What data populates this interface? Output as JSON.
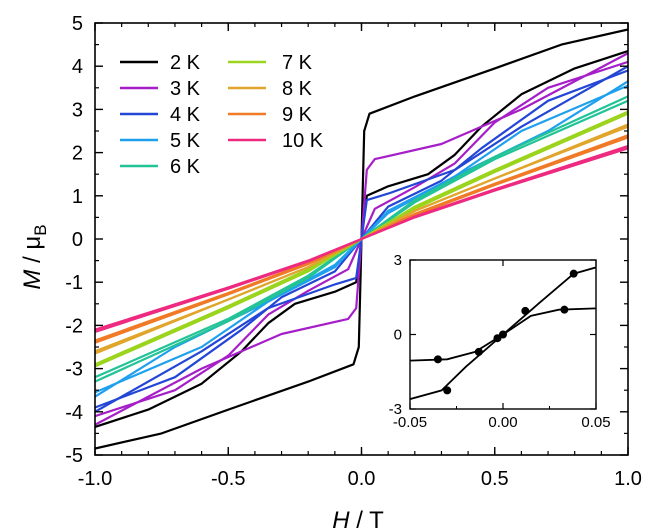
{
  "chart_data": [
    {
      "type": "line",
      "title": "",
      "xlabel": {
        "italic": "H",
        "rest": " / T"
      },
      "ylabel": {
        "italic": "M",
        "rest": " / μ",
        "sub": "B"
      },
      "xlim": [
        -1.0,
        1.0
      ],
      "ylim": [
        -5,
        5
      ],
      "xticks": [
        -1.0,
        -0.5,
        0.0,
        0.5,
        1.0
      ],
      "xtick_labels": [
        "-1.0",
        "-0.5",
        "0.0",
        "0.5",
        "1.0"
      ],
      "yticks": [
        -5,
        -4,
        -3,
        -2,
        -1,
        0,
        1,
        2,
        3,
        4,
        5
      ],
      "ytick_labels": [
        "-5",
        "-4",
        "-3",
        "-2",
        "-1",
        "0",
        "1",
        "2",
        "3",
        "4",
        "5"
      ],
      "legend_position": "top-left",
      "series": [
        {
          "name": "2 K",
          "color": "#000000",
          "upper": [
            [
              -1.0,
              -4.35
            ],
            [
              -0.8,
              -3.95
            ],
            [
              -0.6,
              -3.35
            ],
            [
              -0.45,
              -2.6
            ],
            [
              -0.35,
              -1.95
            ],
            [
              -0.25,
              -1.5
            ],
            [
              -0.1,
              -1.22
            ],
            [
              -0.02,
              -1.0
            ],
            [
              0,
              0
            ],
            [
              0.01,
              2.5
            ],
            [
              0.03,
              2.9
            ],
            [
              0.2,
              3.3
            ],
            [
              0.5,
              3.95
            ],
            [
              0.75,
              4.5
            ],
            [
              1.0,
              4.85
            ]
          ],
          "lower": [
            [
              -1.0,
              -4.85
            ],
            [
              -0.75,
              -4.5
            ],
            [
              -0.5,
              -3.95
            ],
            [
              -0.2,
              -3.3
            ],
            [
              -0.03,
              -2.9
            ],
            [
              -0.01,
              -2.5
            ],
            [
              0,
              0
            ],
            [
              0.02,
              1.0
            ],
            [
              0.1,
              1.22
            ],
            [
              0.25,
              1.5
            ],
            [
              0.35,
              1.95
            ],
            [
              0.45,
              2.6
            ],
            [
              0.6,
              3.35
            ],
            [
              0.8,
              3.95
            ],
            [
              1.0,
              4.35
            ]
          ]
        },
        {
          "name": "3 K",
          "color": "#a61ec8",
          "upper": [
            [
              -1.0,
              -4.1
            ],
            [
              -0.7,
              -3.5
            ],
            [
              -0.5,
              -2.7
            ],
            [
              -0.35,
              -1.75
            ],
            [
              -0.2,
              -1.2
            ],
            [
              -0.05,
              -0.7
            ],
            [
              0,
              0
            ],
            [
              0.02,
              1.6
            ],
            [
              0.05,
              1.85
            ],
            [
              0.3,
              2.2
            ],
            [
              0.6,
              3.0
            ],
            [
              1.0,
              4.3
            ]
          ],
          "lower": [
            [
              -1.0,
              -4.3
            ],
            [
              -0.6,
              -3.0
            ],
            [
              -0.3,
              -2.2
            ],
            [
              -0.05,
              -1.85
            ],
            [
              -0.02,
              -1.6
            ],
            [
              0,
              0
            ],
            [
              0.05,
              0.7
            ],
            [
              0.2,
              1.2
            ],
            [
              0.35,
              1.75
            ],
            [
              0.5,
              2.7
            ],
            [
              0.7,
              3.5
            ],
            [
              1.0,
              4.1
            ]
          ]
        },
        {
          "name": "4 K",
          "color": "#2346d6",
          "upper": [
            [
              -1.0,
              -3.9
            ],
            [
              -0.7,
              -3.2
            ],
            [
              -0.45,
              -2.1
            ],
            [
              -0.3,
              -1.35
            ],
            [
              -0.1,
              -0.75
            ],
            [
              0,
              0
            ],
            [
              0.02,
              0.9
            ],
            [
              0.1,
              1.05
            ],
            [
              0.35,
              1.6
            ],
            [
              0.6,
              2.6
            ],
            [
              1.0,
              4.0
            ]
          ],
          "lower": [
            [
              -1.0,
              -4.0
            ],
            [
              -0.6,
              -2.6
            ],
            [
              -0.35,
              -1.6
            ],
            [
              -0.1,
              -1.05
            ],
            [
              -0.02,
              -0.9
            ],
            [
              0,
              0
            ],
            [
              0.1,
              0.75
            ],
            [
              0.3,
              1.35
            ],
            [
              0.45,
              2.1
            ],
            [
              0.7,
              3.2
            ],
            [
              1.0,
              3.9
            ]
          ]
        },
        {
          "name": "5 K",
          "color": "#1fa0ee",
          "upper": [
            [
              -1.0,
              -3.55
            ],
            [
              -0.6,
              -2.5
            ],
            [
              -0.35,
              -1.45
            ],
            [
              -0.1,
              -0.6
            ],
            [
              0,
              0
            ],
            [
              0.1,
              0.65
            ],
            [
              0.4,
              1.6
            ],
            [
              0.7,
              2.5
            ],
            [
              1.0,
              3.65
            ]
          ],
          "lower": [
            [
              -1.0,
              -3.65
            ],
            [
              -0.7,
              -2.5
            ],
            [
              -0.4,
              -1.6
            ],
            [
              -0.1,
              -0.65
            ],
            [
              0,
              0
            ],
            [
              0.1,
              0.6
            ],
            [
              0.35,
              1.45
            ],
            [
              0.6,
              2.5
            ],
            [
              1.0,
              3.55
            ]
          ]
        },
        {
          "name": "6 K",
          "color": "#22c396",
          "upper": [
            [
              -1.0,
              -3.2
            ],
            [
              -0.5,
              -1.85
            ],
            [
              -0.2,
              -0.85
            ],
            [
              0,
              0
            ],
            [
              0.2,
              0.9
            ],
            [
              0.5,
              1.9
            ],
            [
              1.0,
              3.3
            ]
          ],
          "lower": [
            [
              -1.0,
              -3.3
            ],
            [
              -0.5,
              -1.9
            ],
            [
              -0.2,
              -0.9
            ],
            [
              0,
              0
            ],
            [
              0.2,
              0.85
            ],
            [
              0.5,
              1.85
            ],
            [
              1.0,
              3.2
            ]
          ]
        },
        {
          "name": "7 K",
          "color": "#9bd41c",
          "upper": [
            [
              -1.0,
              -2.9
            ],
            [
              -0.5,
              -1.55
            ],
            [
              -0.2,
              -0.7
            ],
            [
              0,
              0
            ],
            [
              0.2,
              0.75
            ],
            [
              0.5,
              1.6
            ],
            [
              1.0,
              2.95
            ]
          ],
          "lower": [
            [
              -1.0,
              -2.95
            ],
            [
              -0.5,
              -1.6
            ],
            [
              -0.2,
              -0.75
            ],
            [
              0,
              0
            ],
            [
              0.2,
              0.7
            ],
            [
              0.5,
              1.55
            ],
            [
              1.0,
              2.9
            ]
          ]
        },
        {
          "name": "8 K",
          "color": "#e0a52a",
          "upper": [
            [
              -1.0,
              -2.6
            ],
            [
              -0.5,
              -1.4
            ],
            [
              -0.2,
              -0.65
            ],
            [
              0,
              0
            ],
            [
              0.2,
              0.65
            ],
            [
              0.5,
              1.4
            ],
            [
              1.0,
              2.65
            ]
          ],
          "lower": [
            [
              -1.0,
              -2.65
            ],
            [
              -0.5,
              -1.4
            ],
            [
              -0.2,
              -0.65
            ],
            [
              0,
              0
            ],
            [
              0.2,
              0.65
            ],
            [
              0.5,
              1.4
            ],
            [
              1.0,
              2.6
            ]
          ]
        },
        {
          "name": "9 K",
          "color": "#f07a25",
          "upper": [
            [
              -1.0,
              -2.35
            ],
            [
              -0.5,
              -1.25
            ],
            [
              -0.2,
              -0.55
            ],
            [
              0,
              0
            ],
            [
              0.2,
              0.58
            ],
            [
              0.5,
              1.28
            ],
            [
              1.0,
              2.4
            ]
          ],
          "lower": [
            [
              -1.0,
              -2.4
            ],
            [
              -0.5,
              -1.28
            ],
            [
              -0.2,
              -0.58
            ],
            [
              0,
              0
            ],
            [
              0.2,
              0.55
            ],
            [
              0.5,
              1.25
            ],
            [
              1.0,
              2.35
            ]
          ]
        },
        {
          "name": "10 K",
          "color": "#ee2a80",
          "upper": [
            [
              -1.0,
              -2.1
            ],
            [
              -0.5,
              -1.12
            ],
            [
              -0.2,
              -0.5
            ],
            [
              0,
              0
            ],
            [
              0.2,
              0.52
            ],
            [
              0.5,
              1.15
            ],
            [
              1.0,
              2.15
            ]
          ],
          "lower": [
            [
              -1.0,
              -2.15
            ],
            [
              -0.5,
              -1.15
            ],
            [
              -0.2,
              -0.52
            ],
            [
              0,
              0
            ],
            [
              0.2,
              0.5
            ],
            [
              0.5,
              1.12
            ],
            [
              1.0,
              2.1
            ]
          ]
        }
      ]
    },
    {
      "type": "line",
      "title": "",
      "xlim": [
        -0.05,
        0.05
      ],
      "ylim": [
        -3,
        3
      ],
      "xticks": [
        -0.05,
        0.0,
        0.05
      ],
      "xtick_labels": [
        "-0.05",
        "0.00",
        "0.05"
      ],
      "yticks": [
        -3,
        0,
        3
      ],
      "ytick_labels": [
        "-3",
        "0",
        "3"
      ],
      "series": [
        {
          "color": "#000000",
          "line": [
            [
              -0.05,
              -1.05
            ],
            [
              -0.03,
              -1.0
            ],
            [
              -0.015,
              -0.7
            ],
            [
              0.0,
              0.0
            ],
            [
              0.015,
              0.75
            ],
            [
              0.03,
              1.0
            ],
            [
              0.05,
              1.05
            ]
          ],
          "points": [
            [
              -0.035,
              -1.0
            ],
            [
              -0.013,
              -0.7
            ],
            [
              0.0,
              0.0
            ],
            [
              0.012,
              0.95
            ],
            [
              0.033,
              1.0
            ]
          ]
        },
        {
          "color": "#000000",
          "line": [
            [
              -0.05,
              -2.6
            ],
            [
              -0.033,
              -2.25
            ],
            [
              -0.02,
              -1.3
            ],
            [
              0.0,
              0.0
            ],
            [
              0.02,
              1.3
            ],
            [
              0.038,
              2.45
            ],
            [
              0.05,
              2.7
            ]
          ],
          "points": [
            [
              -0.03,
              -2.25
            ],
            [
              -0.003,
              -0.15
            ],
            [
              0.038,
              2.45
            ]
          ]
        }
      ]
    }
  ]
}
